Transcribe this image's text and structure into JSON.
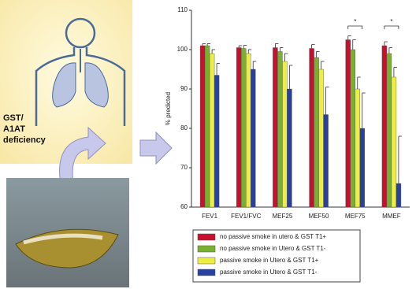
{
  "illustration": {
    "label_lines": [
      "GST/",
      "A1AT",
      "deficiency"
    ]
  },
  "chart_data": {
    "type": "bar",
    "y_label": "% predicted",
    "categories": [
      "FEV1",
      "FEV1/FVC",
      "MEF25",
      "MEF50",
      "MEF75",
      "MMEF"
    ],
    "series": [
      {
        "name": "no passive smoke in utero & GST T1+",
        "color": "#c8102e",
        "values": [
          101,
          100.5,
          100.5,
          100.3,
          102.5,
          101
        ],
        "errors": [
          0.5,
          0.5,
          1,
          1,
          1,
          1
        ]
      },
      {
        "name": "no passive smoke in Utero & GST T1-",
        "color": "#78b030",
        "values": [
          101,
          100.3,
          99.5,
          98,
          100,
          99
        ],
        "errors": [
          0.5,
          0.8,
          1,
          1.5,
          2.5,
          1.5
        ]
      },
      {
        "name": "passive smoke in Utero & GST T1+",
        "color": "#eeee40",
        "values": [
          99,
          99,
          97,
          95,
          90,
          93
        ],
        "errors": [
          1,
          1,
          2,
          2,
          3,
          2.5
        ]
      },
      {
        "name": "passive smoke in Utero & GST T1-",
        "color": "#2840a0",
        "values": [
          93.5,
          95,
          90,
          83.5,
          80,
          66
        ],
        "errors": [
          3,
          2,
          6,
          7,
          9,
          12
        ]
      }
    ],
    "ylim": [
      60,
      110
    ],
    "yticks": [
      60,
      70,
      80,
      90,
      100,
      110
    ],
    "significance": [
      {
        "category": "MEF75",
        "label": "*"
      },
      {
        "category": "MMEF",
        "label": "*"
      }
    ],
    "grid": false
  }
}
